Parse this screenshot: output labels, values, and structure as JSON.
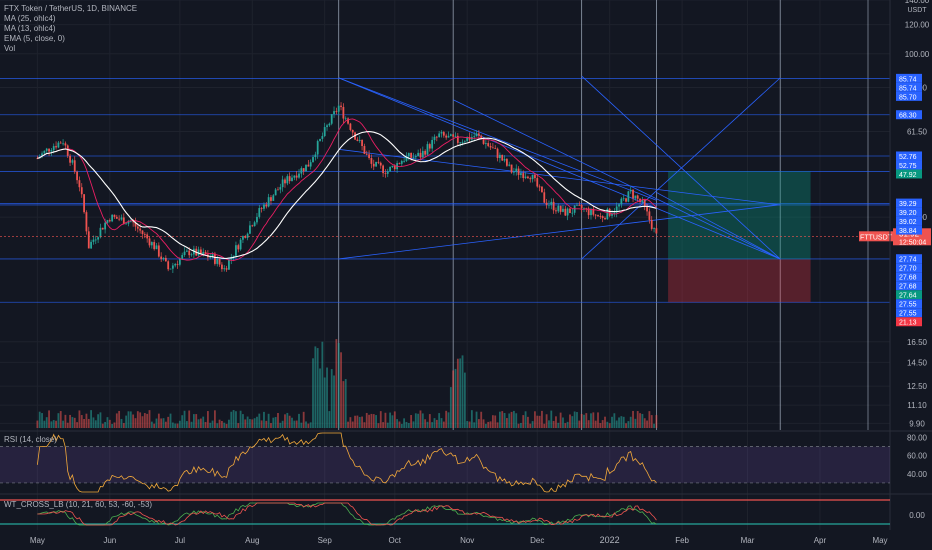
{
  "legend": {
    "title": "FTX Token / TetherUS, 1D, BINANCE",
    "ma25": "MA (25, ohlc4)",
    "ma13": "MA (13, ohlc4)",
    "ema": "EMA (5, close, 0)",
    "vol": "Vol"
  },
  "rsi_title": "RSI (14, close)",
  "wt_title": "WT_CROSS_LB (10, 21, 60, 53, -60, -53)",
  "currency": "USDT",
  "ticker_label": "FTTUSDT",
  "colors": {
    "background": "#131722",
    "up": "#26a69a",
    "down": "#ef5350",
    "trendline": "#2962ff",
    "ema": "#ffffff",
    "ma": "#e91e63",
    "rsi": "#f2a93b",
    "rsi_band": "#7e57c2",
    "level_label_blue": "#2962ff",
    "level_label_green": "#089981",
    "level_label_red": "#f23645"
  },
  "chart_data": {
    "type": "line",
    "title": "FTX Token / TetherUS, 1D, BINANCE",
    "scale": "log",
    "ylim": [
      9.5,
      140
    ],
    "yticks": [
      "140.00",
      "120.00",
      "100.00",
      "81.00",
      "61.50",
      "36.00",
      "16.50",
      "14.50",
      "12.50",
      "11.10",
      "9.90"
    ],
    "xticks": [
      "May",
      "Jun",
      "Jul",
      "Aug",
      "Sep",
      "Oct",
      "Nov",
      "Dec",
      "2022",
      "Feb",
      "Mar",
      "Apr",
      "May"
    ],
    "last_price": "31.92",
    "countdown": "12:50:04",
    "level_labels": [
      {
        "value": 85.74,
        "label": "85.74",
        "color": "blue"
      },
      {
        "value": 85.74,
        "label": "85.74",
        "color": "blue"
      },
      {
        "value": 85.7,
        "label": "85.70",
        "color": "blue"
      },
      {
        "value": 68.3,
        "label": "68.30",
        "color": "blue"
      },
      {
        "value": 52.76,
        "label": "52.76",
        "color": "blue"
      },
      {
        "value": 52.75,
        "label": "52.75",
        "color": "blue"
      },
      {
        "value": 47.92,
        "label": "47.92",
        "color": "green"
      },
      {
        "value": 39.29,
        "label": "39.29",
        "color": "blue"
      },
      {
        "value": 39.2,
        "label": "39.20",
        "color": "blue"
      },
      {
        "value": 39.02,
        "label": "39.02",
        "color": "blue"
      },
      {
        "value": 38.84,
        "label": "38.84",
        "color": "blue"
      },
      {
        "value": 27.74,
        "label": "27.74",
        "color": "blue"
      },
      {
        "value": 27.7,
        "label": "27.70",
        "color": "blue"
      },
      {
        "value": 27.68,
        "label": "27.68",
        "color": "blue"
      },
      {
        "value": 27.68,
        "label": "27.68",
        "color": "blue"
      },
      {
        "value": 27.64,
        "label": "27.64",
        "color": "green"
      },
      {
        "value": 27.55,
        "label": "27.55",
        "color": "blue"
      },
      {
        "value": 27.55,
        "label": "27.55",
        "color": "blue"
      },
      {
        "value": 21.13,
        "label": "21.13",
        "color": "red"
      }
    ],
    "price_path": [
      {
        "x": "2021-05-01",
        "y": 52
      },
      {
        "x": "2021-05-07",
        "y": 56
      },
      {
        "x": "2021-05-12",
        "y": 58
      },
      {
        "x": "2021-05-19",
        "y": 44
      },
      {
        "x": "2021-05-23",
        "y": 30
      },
      {
        "x": "2021-06-01",
        "y": 36
      },
      {
        "x": "2021-06-10",
        "y": 35
      },
      {
        "x": "2021-06-20",
        "y": 30
      },
      {
        "x": "2021-06-26",
        "y": 26
      },
      {
        "x": "2021-07-05",
        "y": 29
      },
      {
        "x": "2021-07-15",
        "y": 28
      },
      {
        "x": "2021-07-20",
        "y": 26
      },
      {
        "x": "2021-07-27",
        "y": 31
      },
      {
        "x": "2021-08-05",
        "y": 38
      },
      {
        "x": "2021-08-15",
        "y": 45
      },
      {
        "x": "2021-08-25",
        "y": 50
      },
      {
        "x": "2021-08-30",
        "y": 58
      },
      {
        "x": "2021-09-07",
        "y": 72
      },
      {
        "x": "2021-09-14",
        "y": 60
      },
      {
        "x": "2021-09-21",
        "y": 50
      },
      {
        "x": "2021-09-28",
        "y": 48
      },
      {
        "x": "2021-10-05",
        "y": 52
      },
      {
        "x": "2021-10-12",
        "y": 53
      },
      {
        "x": "2021-10-20",
        "y": 60
      },
      {
        "x": "2021-10-28",
        "y": 58
      },
      {
        "x": "2021-11-05",
        "y": 60
      },
      {
        "x": "2021-11-12",
        "y": 55
      },
      {
        "x": "2021-11-20",
        "y": 48
      },
      {
        "x": "2021-11-28",
        "y": 47
      },
      {
        "x": "2021-12-04",
        "y": 40
      },
      {
        "x": "2021-12-12",
        "y": 37
      },
      {
        "x": "2021-12-20",
        "y": 38
      },
      {
        "x": "2021-12-28",
        "y": 36
      },
      {
        "x": "2022-01-04",
        "y": 38
      },
      {
        "x": "2022-01-10",
        "y": 42
      },
      {
        "x": "2022-01-15",
        "y": 39
      },
      {
        "x": "2022-01-21",
        "y": 31.92
      }
    ],
    "volume_spike_dates": [
      "2021-09-07",
      "2021-08-30",
      "2021-10-28"
    ],
    "rsi": {
      "ylim": [
        20,
        85
      ],
      "yticks": [
        "80.00",
        "60.00",
        "40.00"
      ],
      "upper": 70,
      "lower": 30
    },
    "wt": {
      "yticks": [
        "0.00"
      ]
    }
  }
}
